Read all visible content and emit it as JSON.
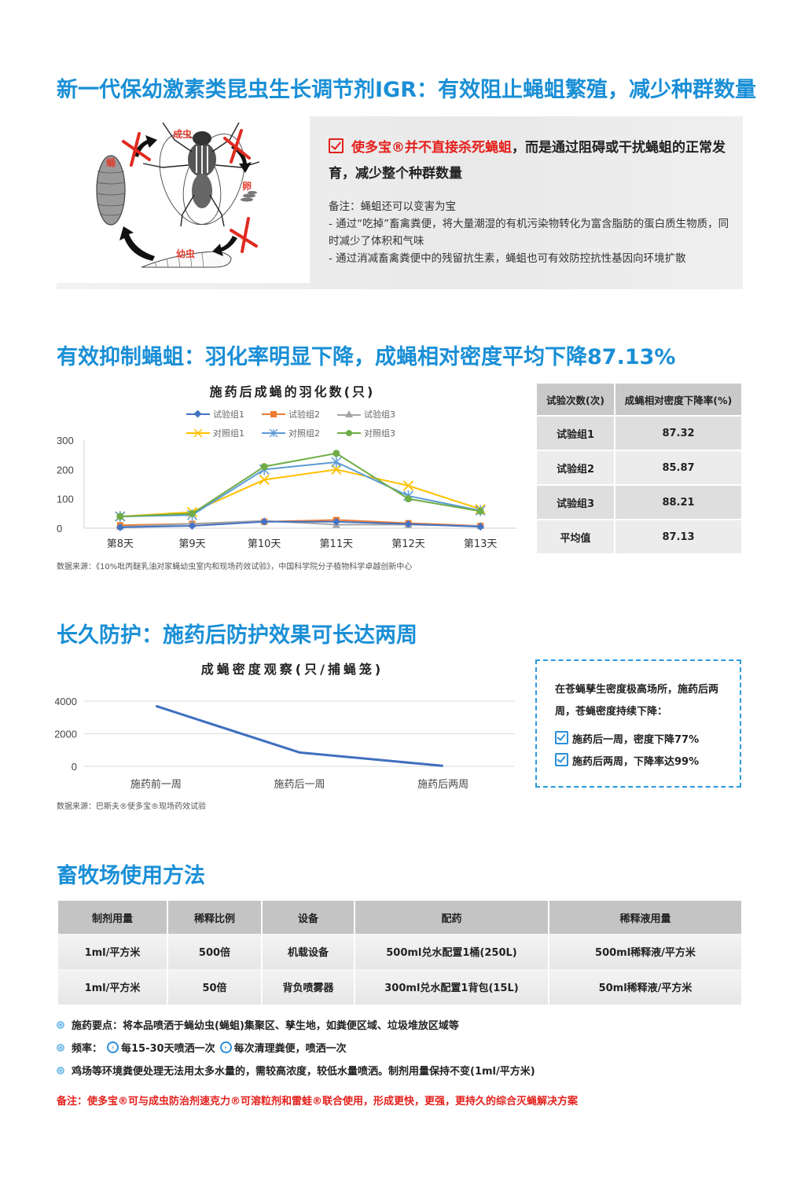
{
  "section1": {
    "title": "新一代保幼激素类昆虫生长调节剂IGR：有效阻止蝇蛆繁殖，减少种群数量",
    "lifecycle_labels": {
      "adult": "成虫",
      "pupa": "蛹",
      "egg": "卵",
      "larva": "幼虫"
    },
    "headline_red": "使多宝®并不直接杀死蝇蛆",
    "headline_rest": "，而是通过阻碍或干扰蝇蛆的正常发育，减少整个种群数量",
    "note_title": "备注：蝇蛆还可以变害为宝",
    "note_lines": [
      "- 通过“吃掉”畜禽粪便，将大量潮湿的有机污染物转化为富含脂肪的蛋白质生物质，同时减少了体积和气味",
      "- 通过消减畜禽粪便中的残留抗生素，蝇蛆也可有效防控抗性基因向环境扩散"
    ]
  },
  "section2": {
    "title": "有效抑制蝇蛆：羽化率明显下降，成蝇相对密度平均下降87.13%",
    "source": "数据来源：《10%吡丙醚乳油对家蝇幼虫室内和现场药效试验》，中国科学院分子植物科学卓越创新中心",
    "table": {
      "headers": [
        "试验次数(次)",
        "成蝇相对密度下降率(%)"
      ],
      "rows": [
        [
          "试验组1",
          "87.32"
        ],
        [
          "试验组2",
          "85.87"
        ],
        [
          "试验组3",
          "88.21"
        ],
        [
          "平均值",
          "87.13"
        ]
      ]
    }
  },
  "section3": {
    "title": "长久防护：施药后防护效果可长达两周",
    "source": "数据来源：巴斯夫®使多宝®现场药效试验",
    "callout": {
      "text": "在苍蝇孳生密度极高场所，施药后两周，苍蝇密度持续下降：",
      "items": [
        "施药后一周，密度下降77%",
        "施药后两周，下降率达99%"
      ]
    }
  },
  "section4": {
    "title": "畜牧场使用方法",
    "table": {
      "headers": [
        "制剂用量",
        "稀释比例",
        "设备",
        "配药",
        "稀释液用量"
      ],
      "rows": [
        [
          "1ml/平方米",
          "500倍",
          "机载设备",
          "500ml兑水配置1桶(250L)",
          "500ml稀释液/平方米"
        ],
        [
          "1ml/平方米",
          "50倍",
          "背负喷雾器",
          "300ml兑水配置1背包(15L)",
          "50ml稀释液/平方米"
        ]
      ]
    },
    "bullets": {
      "b1": "施药要点：将本品喷洒于蝇幼虫(蝇蛆)集聚区、孳生地，如粪便区域、垃圾堆放区域等",
      "b2_label": "频率：",
      "b2_opt1": "每15-30天喷洒一次",
      "b2_opt2": "每次清理粪便，喷洒一次",
      "b3": "鸡场等环境粪便处理无法用太多水量的，需较高浓度，较低水量喷洒。制剂用量保持不变(1ml/平方米)"
    },
    "remark": "备注：使多宝®可与成虫防治剂速克力®可溶粒剂和雷蛙®联合使用，形成更快，更强，更持久的综合灭蝇解决方案"
  },
  "chart_data": [
    {
      "type": "line",
      "title": "施药后成蝇的羽化数(只)",
      "categories": [
        "第8天",
        "第9天",
        "第10天",
        "第11天",
        "第12天",
        "第13天"
      ],
      "ylim": [
        0,
        300
      ],
      "yticks": [
        0,
        100,
        200,
        300
      ],
      "grid": false,
      "legend_position": "top",
      "series": [
        {
          "name": "试验组1",
          "color": "#4472c4",
          "marker": "diamond",
          "values": [
            3,
            8,
            22,
            22,
            14,
            5
          ]
        },
        {
          "name": "试验组2",
          "color": "#ed7d31",
          "marker": "square",
          "values": [
            10,
            15,
            22,
            28,
            17,
            8
          ]
        },
        {
          "name": "试验组3",
          "color": "#a5a5a5",
          "marker": "triangle",
          "values": [
            5,
            15,
            25,
            12,
            12,
            8
          ]
        },
        {
          "name": "对照组1",
          "color": "#ffc000",
          "marker": "x",
          "values": [
            40,
            55,
            165,
            200,
            145,
            65
          ]
        },
        {
          "name": "对照组2",
          "color": "#5b9bd5",
          "marker": "star",
          "values": [
            40,
            45,
            200,
            225,
            110,
            60
          ]
        },
        {
          "name": "对照组3",
          "color": "#70ad47",
          "marker": "circle",
          "values": [
            40,
            50,
            210,
            255,
            100,
            58
          ]
        }
      ]
    },
    {
      "type": "line",
      "title": "成蝇密度观察(只/捕蝇笼)",
      "categories": [
        "施药前一周",
        "施药后一周",
        "施药后两周"
      ],
      "ylim": [
        0,
        4000
      ],
      "yticks": [
        0,
        2000,
        4000
      ],
      "grid": true,
      "series": [
        {
          "name": "成蝇密度",
          "color": "#3f6fbf",
          "values": [
            3700,
            850,
            30
          ]
        }
      ]
    }
  ]
}
